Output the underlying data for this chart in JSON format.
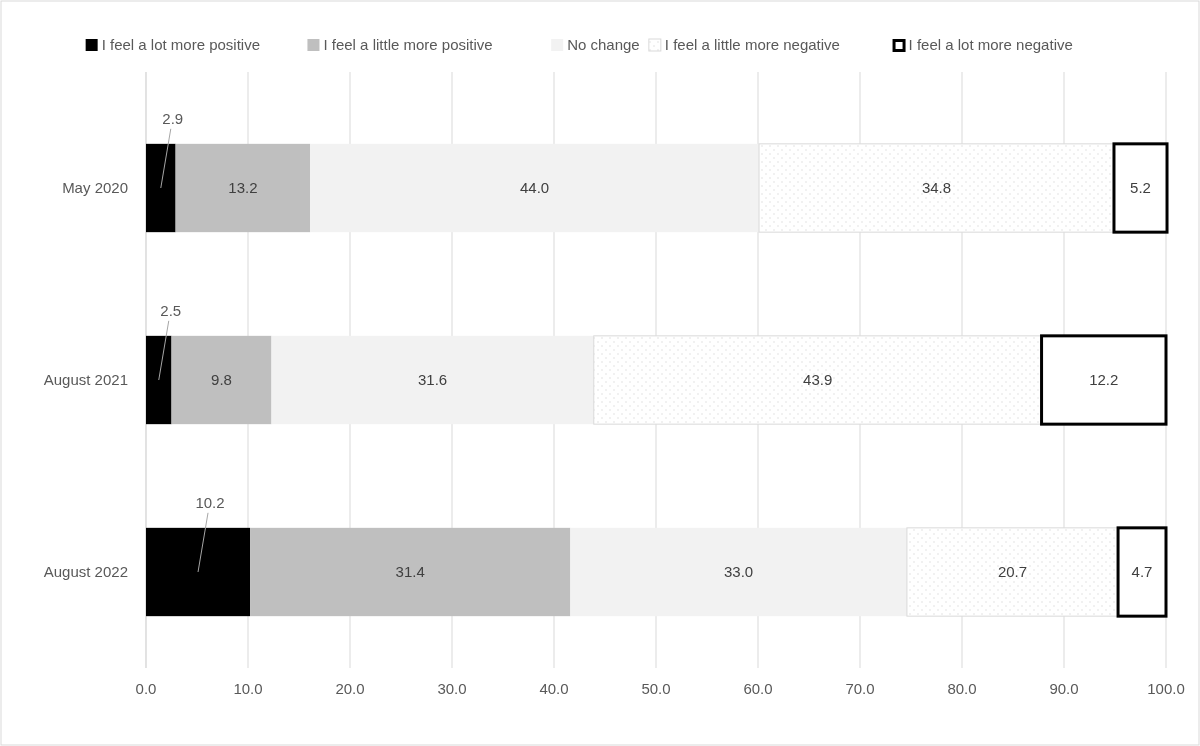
{
  "chart_data": {
    "type": "bar",
    "orientation": "horizontal",
    "stacked": true,
    "categories": [
      "May 2020",
      "August 2021",
      "August 2022"
    ],
    "series": [
      {
        "name": "I feel a lot more positive",
        "color": "#000000",
        "values": [
          2.9,
          2.5,
          10.2
        ],
        "value_labels": [
          "2.9",
          "2.5",
          "10.2"
        ]
      },
      {
        "name": "I feel a little more positive",
        "color": "#bfbfbf",
        "values": [
          13.2,
          9.8,
          31.4
        ],
        "value_labels": [
          "13.2",
          "9.8",
          "31.4"
        ]
      },
      {
        "name": "No change",
        "color": "#f2f2f2",
        "values": [
          44.0,
          31.6,
          33.0
        ],
        "value_labels": [
          "44.0",
          "31.6",
          "33.0"
        ]
      },
      {
        "name": "I feel a little more negative",
        "color": "#d9d9d9",
        "values": [
          34.8,
          43.9,
          20.7
        ],
        "value_labels": [
          "34.8",
          "43.9",
          "20.7"
        ]
      },
      {
        "name": "I feel a lot more negative",
        "color": "#ffffff",
        "values": [
          5.2,
          12.2,
          4.7
        ],
        "value_labels": [
          "5.2",
          "12.2",
          "4.7"
        ]
      }
    ],
    "xlim": [
      0,
      100
    ],
    "xticks": [
      {
        "value": 0,
        "label": "0.0"
      },
      {
        "value": 10,
        "label": "10.0"
      },
      {
        "value": 20,
        "label": "20.0"
      },
      {
        "value": 30,
        "label": "30.0"
      },
      {
        "value": 40,
        "label": "40.0"
      },
      {
        "value": 50,
        "label": "50.0"
      },
      {
        "value": 60,
        "label": "60.0"
      },
      {
        "value": 70,
        "label": "70.0"
      },
      {
        "value": 80,
        "label": "80.0"
      },
      {
        "value": 90,
        "label": "90.0"
      },
      {
        "value": 100,
        "label": "100.0"
      }
    ],
    "grid": "x",
    "legend": "top"
  }
}
